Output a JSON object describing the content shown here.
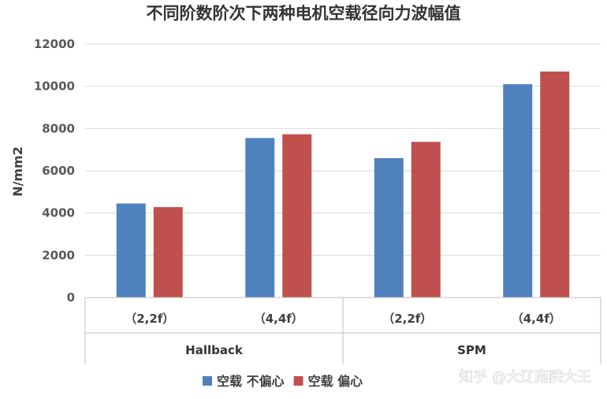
{
  "chart_data": {
    "type": "bar",
    "title": "不同阶数阶次下两种电机空载径向力波幅值",
    "ylabel": "N/mm2",
    "xlabel": "",
    "ylim": [
      0,
      12000
    ],
    "yticks": [
      0,
      2000,
      4000,
      6000,
      8000,
      10000,
      12000
    ],
    "groups": [
      "Hallback",
      "SPM"
    ],
    "categories": [
      "（2,2f）",
      "（4,4f）",
      "（2,2f）",
      "（4,4f）"
    ],
    "category_group": [
      0,
      0,
      1,
      1
    ],
    "series": [
      {
        "name": "空载 不偏心",
        "color": "#4f81bd",
        "values": [
          4450,
          7550,
          6600,
          10100
        ]
      },
      {
        "name": "空载 偏心",
        "color": "#c0504d",
        "values": [
          4280,
          7730,
          7370,
          10700
        ]
      }
    ],
    "legend_position": "bottom",
    "grid": true
  },
  "watermark": "知乎 @大辽南院大王"
}
